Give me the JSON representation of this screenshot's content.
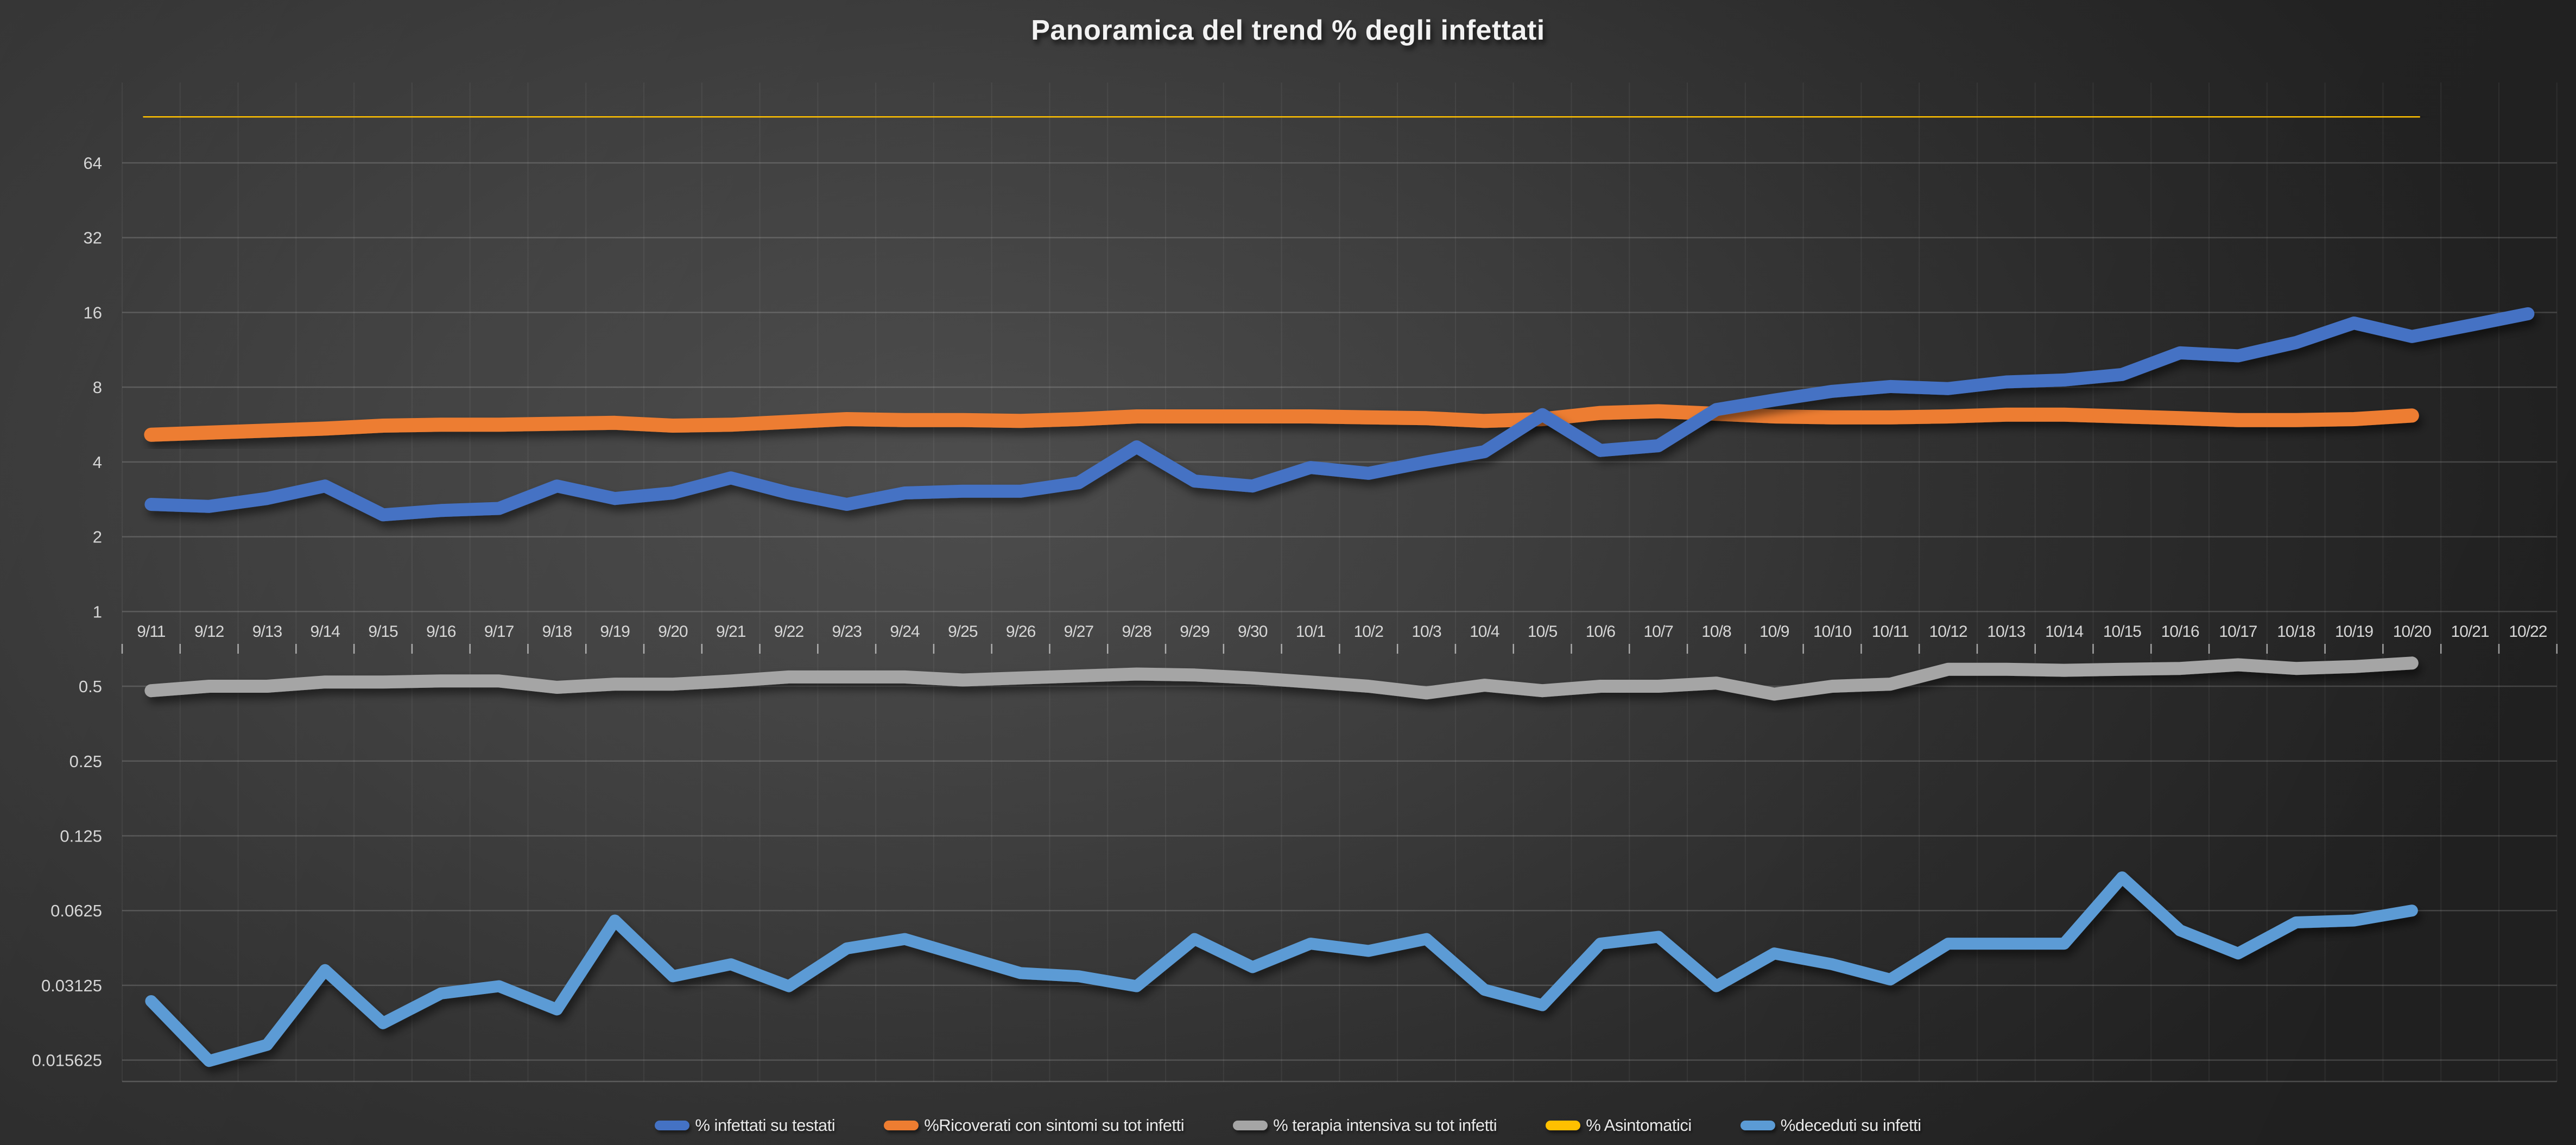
{
  "title": "Panoramica del trend % degli infettati",
  "colors": {
    "background_center": "#4b4b4b",
    "background_edge": "#242424",
    "gridline": "rgba(255,255,255,0.16)",
    "gridline_vertical": "rgba(255,255,255,0.06)",
    "tick_text": "#d6d6d6",
    "title_text": "#f2f2f2"
  },
  "chart_data": {
    "type": "line",
    "title": "Panoramica del trend % degli infettati",
    "xlabel": "",
    "ylabel": "",
    "y_scale": "log2",
    "grid": true,
    "legend_position": "bottom",
    "y_tick_labels": [
      "64",
      "32",
      "16",
      "8",
      "4",
      "2",
      "1",
      "0.5",
      "0.25",
      "0.125",
      "0.0625",
      "0.03125",
      "0.015625"
    ],
    "y_tick_values": [
      64,
      32,
      16,
      8,
      4,
      2,
      1,
      0.5,
      0.25,
      0.125,
      0.0625,
      0.03125,
      0.015625
    ],
    "ylim": [
      0.0135,
      128
    ],
    "categories": [
      "9/11",
      "9/12",
      "9/13",
      "9/14",
      "9/15",
      "9/16",
      "9/17",
      "9/18",
      "9/19",
      "9/20",
      "9/21",
      "9/22",
      "9/23",
      "9/24",
      "9/25",
      "9/26",
      "9/27",
      "9/28",
      "9/29",
      "9/30",
      "10/1",
      "10/2",
      "10/3",
      "10/4",
      "10/5",
      "10/6",
      "10/7",
      "10/8",
      "10/9",
      "10/10",
      "10/11",
      "10/12",
      "10/13",
      "10/14",
      "10/15",
      "10/16",
      "10/17",
      "10/18",
      "10/19",
      "10/20",
      "10/21",
      "10/22"
    ],
    "series": [
      {
        "name": "% infettati su testati",
        "color": "#4472C4",
        "stroke_width": 24,
        "values": [
          2.7,
          2.65,
          2.85,
          3.2,
          2.45,
          2.55,
          2.6,
          3.2,
          2.85,
          3.0,
          3.45,
          3.0,
          2.7,
          3.0,
          3.05,
          3.05,
          3.3,
          4.6,
          3.35,
          3.2,
          3.8,
          3.6,
          4.0,
          4.4,
          6.2,
          4.45,
          4.65,
          6.5,
          7.1,
          7.7,
          8.05,
          7.9,
          8.4,
          8.55,
          9.0,
          11.0,
          10.7,
          12.1,
          14.5,
          12.8,
          14.2,
          15.8
        ]
      },
      {
        "name": "%Ricoverati con sintomi su tot infetti",
        "color": "#ED7D31",
        "stroke_width": 26,
        "values": [
          5.15,
          5.25,
          5.35,
          5.45,
          5.6,
          5.65,
          5.65,
          5.7,
          5.75,
          5.6,
          5.65,
          5.8,
          5.95,
          5.9,
          5.9,
          5.85,
          5.95,
          6.1,
          6.1,
          6.1,
          6.1,
          6.05,
          6.0,
          5.85,
          5.95,
          6.3,
          6.4,
          6.25,
          6.1,
          6.05,
          6.05,
          6.1,
          6.2,
          6.2,
          6.1,
          6.0,
          5.9,
          5.9,
          5.95,
          6.15,
          null,
          null
        ]
      },
      {
        "name": "% terapia intensiva su tot infetti",
        "color": "#A5A5A5",
        "stroke_width": 24,
        "values": [
          0.48,
          0.5,
          0.5,
          0.52,
          0.52,
          0.525,
          0.525,
          0.495,
          0.51,
          0.51,
          0.525,
          0.545,
          0.545,
          0.545,
          0.53,
          0.54,
          0.55,
          0.56,
          0.555,
          0.54,
          0.52,
          0.5,
          0.47,
          0.505,
          0.48,
          0.5,
          0.5,
          0.515,
          0.465,
          0.5,
          0.51,
          0.585,
          0.585,
          0.58,
          0.585,
          0.59,
          0.61,
          0.59,
          0.6,
          0.62,
          null,
          null
        ]
      },
      {
        "name": "% Asintomatici",
        "color": "#FFC000",
        "stroke_width": 30,
        "values": [
          98.2,
          98.3,
          98.3,
          98.2,
          98.3,
          98.3,
          98.2,
          98.1,
          97.9,
          98.0,
          97.8,
          98.0,
          98.1,
          98.2,
          98.1,
          98.0,
          98.1,
          98.2,
          98.2,
          98.1,
          98.0,
          98.1,
          98.2,
          98.1,
          98.0,
          98.1,
          98.2,
          98.3,
          98.2,
          98.1,
          98.2,
          98.3,
          98.4,
          98.3,
          98.2,
          98.1,
          98.0,
          97.9,
          97.9,
          98.0,
          null,
          null
        ]
      },
      {
        "name": "%deceduti su infetti",
        "color": "#5B9BD5",
        "stroke_width": 22,
        "values": [
          0.027,
          0.0155,
          0.018,
          0.036,
          0.022,
          0.029,
          0.031,
          0.025,
          0.057,
          0.034,
          0.038,
          0.031,
          0.044,
          0.048,
          0.041,
          0.035,
          0.034,
          0.031,
          0.048,
          0.037,
          0.046,
          0.043,
          0.048,
          0.03,
          0.026,
          0.046,
          0.049,
          0.031,
          0.042,
          0.038,
          0.033,
          0.046,
          0.046,
          0.046,
          0.085,
          0.052,
          0.042,
          0.056,
          0.057,
          0.0625,
          null,
          null
        ]
      }
    ]
  }
}
